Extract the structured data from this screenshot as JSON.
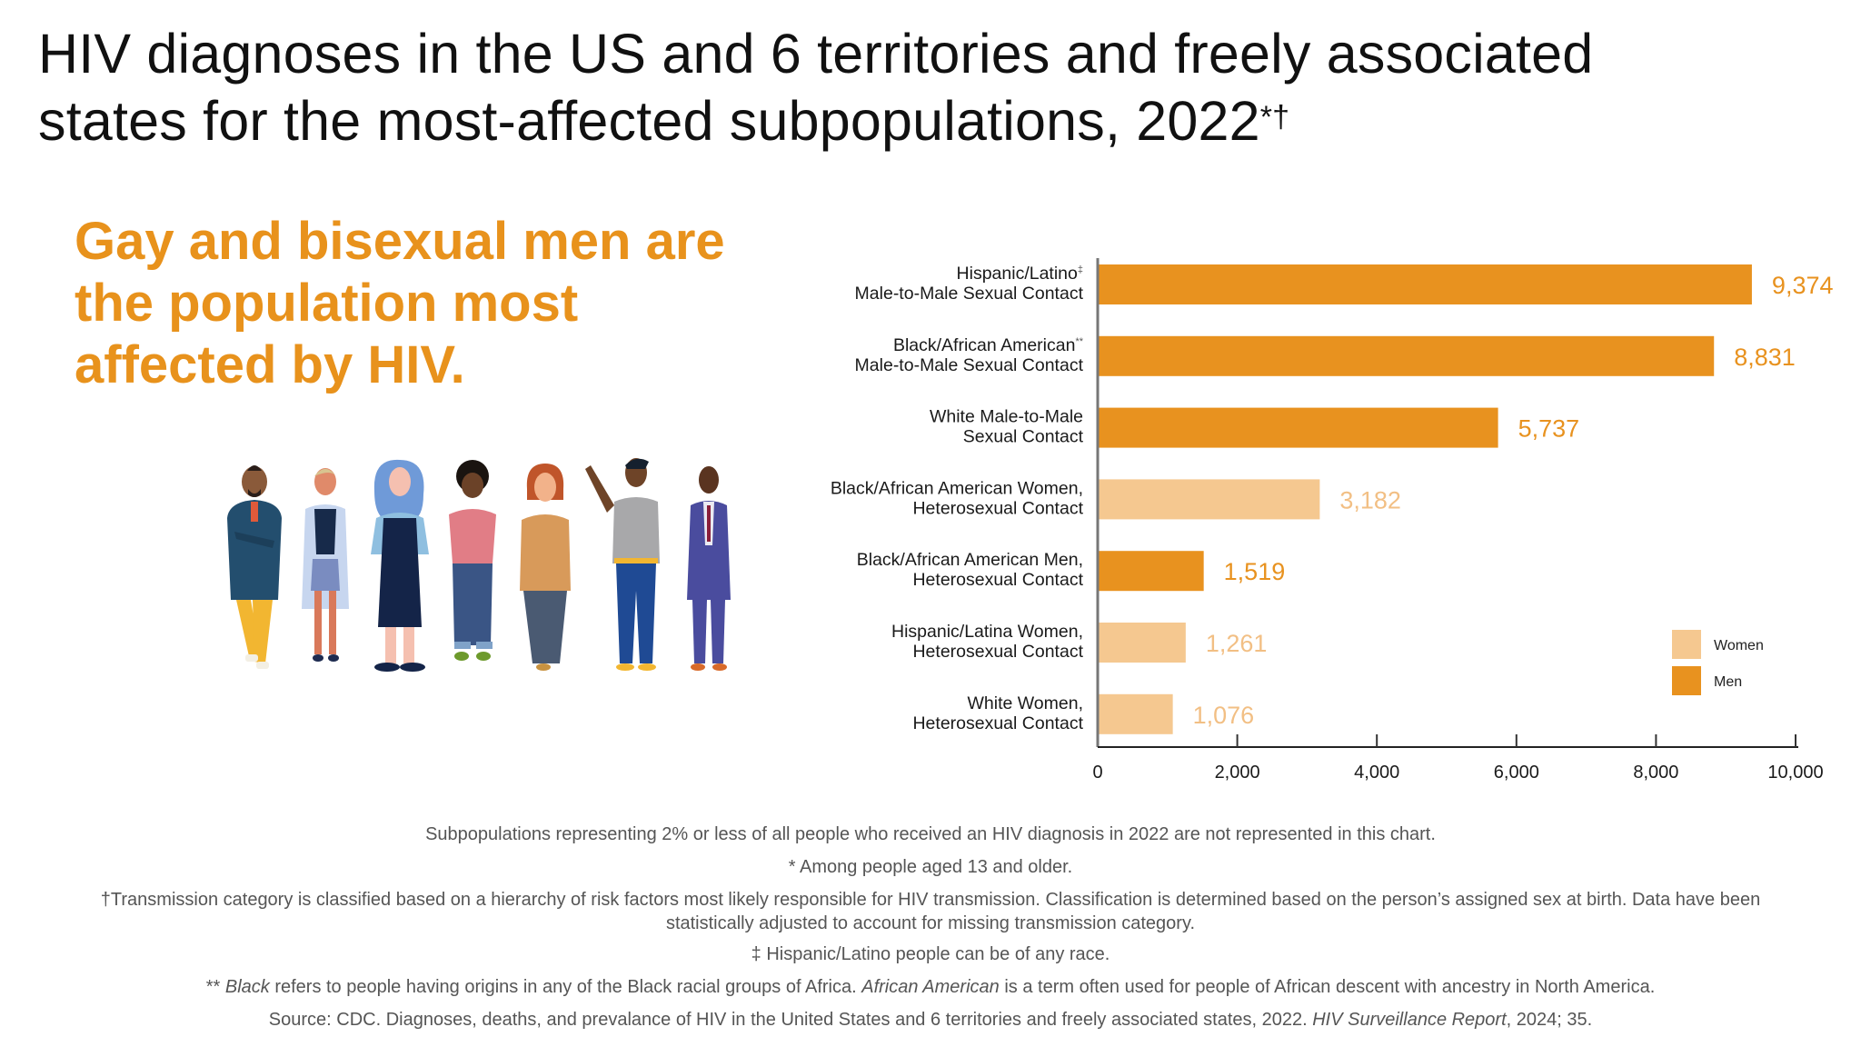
{
  "title": {
    "line1": "HIV diagnoses in the US and 6 territories and freely associated",
    "line2": "states for the most-affected subpopulations, 2022",
    "marks": "*†"
  },
  "headline": {
    "line1": "Gay and bisexual men are",
    "line2": "the population most",
    "line3": "affected by HIV."
  },
  "illustration": {
    "description": "Seven diverse illustrated people standing in a row",
    "icon": "people-group-illustration"
  },
  "colors": {
    "men": "#E8921F",
    "women": "#F5C890",
    "men_label": "#E8921F",
    "women_label": "#F2BF84",
    "axis": "#777777",
    "headline": "#E8921C"
  },
  "chart_data": {
    "type": "bar",
    "orientation": "horizontal",
    "title": "HIV diagnoses in the US and 6 territories and freely associated states for the most-affected subpopulations, 2022",
    "xlabel": "",
    "ylabel": "",
    "xlim": [
      0,
      10000
    ],
    "xticks": [
      0,
      2000,
      4000,
      6000,
      8000,
      10000
    ],
    "xtick_labels": [
      "0",
      "2,000",
      "4,000",
      "6,000",
      "8,000",
      "10,000"
    ],
    "grid": false,
    "legend": {
      "placement": "bottom-right",
      "entries": [
        {
          "name": "Women",
          "color_key": "women"
        },
        {
          "name": "Men",
          "color_key": "men"
        }
      ]
    },
    "categories": [
      {
        "line1": "Hispanic/Latino",
        "mark": "‡",
        "line2": "Male-to-Male Sexual Contact"
      },
      {
        "line1": "Black/African American",
        "mark": "**",
        "line2": "Male-to-Male Sexual Contact"
      },
      {
        "line1": "White Male-to-Male",
        "mark": "",
        "line2": "Sexual Contact"
      },
      {
        "line1": "Black/African American Women,",
        "mark": "",
        "line2": "Heterosexual Contact"
      },
      {
        "line1": "Black/African American Men,",
        "mark": "",
        "line2": "Heterosexual Contact"
      },
      {
        "line1": "Hispanic/Latina Women,",
        "mark": "",
        "line2": "Heterosexual Contact"
      },
      {
        "line1": "White Women,",
        "mark": "",
        "line2": "Heterosexual Contact"
      }
    ],
    "values": [
      9374,
      8831,
      5737,
      3182,
      1519,
      1261,
      1076
    ],
    "value_labels": [
      "9,374",
      "8,831",
      "5,737",
      "3,182",
      "1,519",
      "1,261",
      "1,076"
    ],
    "groups": [
      "men",
      "men",
      "men",
      "women",
      "men",
      "women",
      "women"
    ]
  },
  "footnotes": {
    "note1": "Subpopulations representing 2% or less of all people who received an HIV diagnosis in 2022 are not represented in this chart.",
    "note2": "* Among people aged 13 and older.",
    "note3a": "†Transmission category is classified based on a hierarchy of risk factors most likely responsible for HIV transmission. Classification is determined based on the person’s assigned sex at birth. Data have been",
    "note3b": "statistically adjusted to account for missing transmission category.",
    "note4": "‡ Hispanic/Latino people can be of any race.",
    "note5_prefix": "** ",
    "note5_term1": "Black",
    "note5_mid": " refers to people having origins in any of the Black racial groups of Africa. ",
    "note5_term2": "African American",
    "note5_end": " is a term often used for people of African descent with ancestry in North America.",
    "source_prefix": "Source: CDC. Diagnoses, deaths, and prevalance of HIV in the United States and 6 territories and freely associated states, 2022. ",
    "source_journal": "HIV Surveillance Report",
    "source_end": ", 2024; 35."
  }
}
